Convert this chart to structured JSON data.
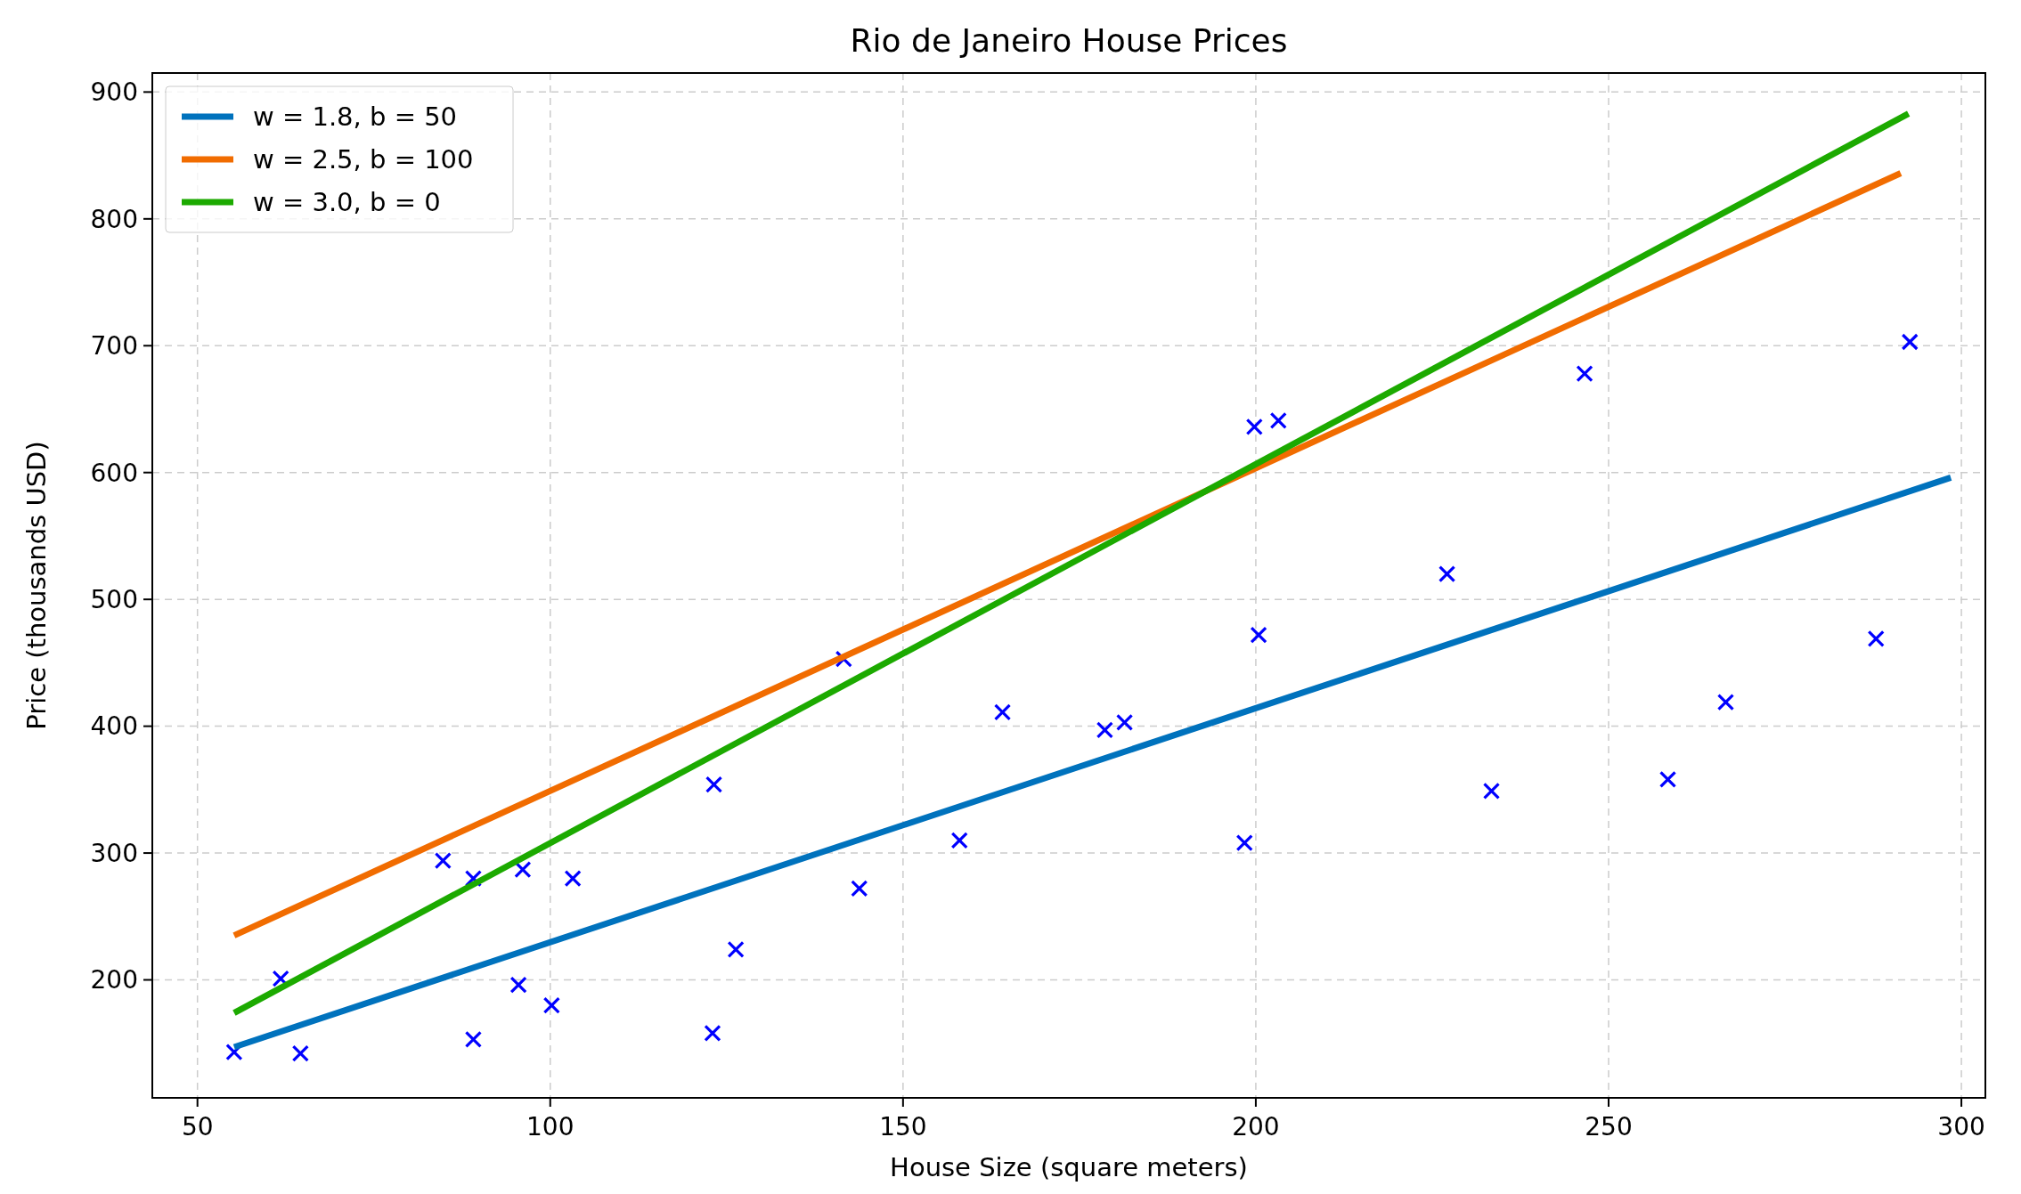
{
  "chart_data": {
    "type": "scatter",
    "title": "Rio de Janeiro House Prices",
    "xlabel": "House Size (square meters)",
    "ylabel": "Price (thousands USD)",
    "xlim": [
      43.6,
      303.4
    ],
    "ylim": [
      107,
      915
    ],
    "xticks": [
      50,
      100,
      150,
      200,
      250,
      300
    ],
    "yticks": [
      200,
      300,
      400,
      500,
      600,
      700,
      800,
      900
    ],
    "grid": true,
    "legend": "top left",
    "series": [
      {
        "color": "#0000ff",
        "marker": "cross",
        "x": [
          55.2,
          64.6,
          61.8,
          84.8,
          89.1,
          89.1,
          96.1,
          95.5,
          100.2,
          103.2,
          123.2,
          123.0,
          126.3,
          141.6,
          143.8,
          158.0,
          164.1,
          178.6,
          181.4,
          198.4,
          199.8,
          200.4,
          203.2,
          227.1,
          233.4,
          246.6,
          258.4,
          266.6,
          287.9,
          292.7
        ],
        "values": [
          143,
          142,
          201,
          294,
          280,
          153,
          287,
          196,
          180,
          280,
          354,
          158,
          224,
          453,
          272,
          310,
          411,
          397,
          403,
          308,
          636,
          472,
          641,
          520,
          349,
          678,
          358,
          419,
          469,
          703
        ]
      },
      {
        "type": "line",
        "name": "w = 1.8, b = 50",
        "color": "#0072bd",
        "x": [
          55.2,
          298.5
        ],
        "values": [
          147,
          596
        ]
      },
      {
        "type": "line",
        "name": "w = 2.5, b = 100",
        "color": "#f16c00",
        "x": [
          55.2,
          291.4
        ],
        "values": [
          235,
          836
        ]
      },
      {
        "type": "line",
        "name": "w = 3.0, b = 0",
        "color": "#1caa00",
        "x": [
          55.2,
          292.5
        ],
        "values": [
          174,
          883
        ]
      }
    ]
  }
}
